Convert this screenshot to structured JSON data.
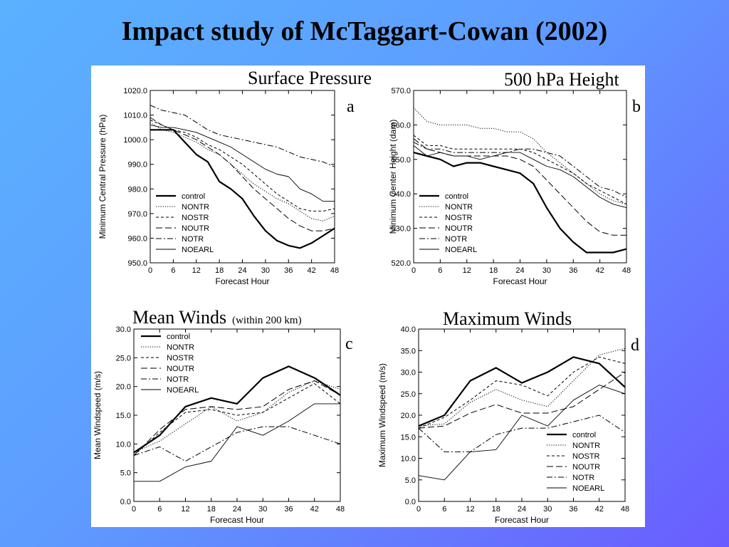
{
  "slide": {
    "title": "Impact study  of McTaggart-Cowan (2002)"
  },
  "chart_data": [
    {
      "type": "line",
      "panel": "a",
      "title": "Surface Pressure",
      "title_note": "",
      "xlabel": "Forecast Hour",
      "ylabel": "Minimum Central Pressure (hPa)",
      "xlim": [
        0,
        48
      ],
      "ylim": [
        950,
        1020
      ],
      "xticks": [
        0,
        6,
        12,
        18,
        24,
        30,
        36,
        42,
        48
      ],
      "yticks": [
        950,
        960,
        970,
        980,
        990,
        1000,
        1010,
        1020
      ],
      "ytick_decimals": 1,
      "legend_position": "bottom-left",
      "grid": false,
      "x": [
        0,
        3,
        6,
        9,
        12,
        15,
        18,
        21,
        24,
        27,
        30,
        33,
        36,
        39,
        42,
        45,
        48
      ],
      "series": [
        {
          "name": "control",
          "style": "solid-bold",
          "values": [
            1004,
            1004,
            1004,
            999,
            994,
            991,
            983,
            980,
            976,
            969,
            963,
            959,
            957,
            956,
            958,
            961,
            964
          ]
        },
        {
          "name": "NONTR",
          "style": "dotted",
          "values": [
            1007,
            1004,
            1003,
            1001,
            999,
            996,
            994,
            990,
            986,
            982,
            979,
            976,
            974,
            971,
            968,
            967,
            969
          ]
        },
        {
          "name": "NOSTR",
          "style": "short-dash",
          "values": [
            1008,
            1006,
            1004,
            1003,
            1001,
            998,
            996,
            993,
            990,
            986,
            982,
            978,
            975,
            972,
            971,
            971,
            972
          ]
        },
        {
          "name": "NOUTR",
          "style": "long-dash",
          "values": [
            1009,
            1006,
            1004,
            1002,
            1000,
            997,
            994,
            990,
            985,
            980,
            976,
            972,
            968,
            965,
            963,
            963,
            964
          ]
        },
        {
          "name": "NOTR",
          "style": "dash-dot",
          "values": [
            1014,
            1012,
            1011,
            1010,
            1007,
            1004,
            1002,
            1001,
            1000,
            999,
            998,
            997,
            995,
            993,
            992,
            991,
            989
          ]
        },
        {
          "name": "NOEARL",
          "style": "solid-thin",
          "values": [
            1006,
            1005,
            1005,
            1004,
            1003,
            1001,
            999,
            997,
            994,
            991,
            988,
            986,
            985,
            980,
            978,
            975,
            975
          ]
        }
      ]
    },
    {
      "type": "line",
      "panel": "b",
      "title": "500 hPa Height",
      "title_note": "",
      "xlabel": "Forecast Hour",
      "ylabel": "Minimum Center Height (dam)",
      "xlim": [
        0,
        48
      ],
      "ylim": [
        520,
        570
      ],
      "xticks": [
        0,
        6,
        12,
        18,
        24,
        30,
        36,
        42,
        48
      ],
      "yticks": [
        520,
        530,
        540,
        550,
        560,
        570
      ],
      "ytick_decimals": 1,
      "legend_position": "bottom-left",
      "grid": false,
      "x": [
        0,
        3,
        6,
        9,
        12,
        15,
        18,
        21,
        24,
        27,
        30,
        33,
        36,
        39,
        42,
        45,
        48
      ],
      "series": [
        {
          "name": "control",
          "style": "solid-bold",
          "values": [
            552,
            551,
            550,
            548,
            549,
            549,
            548,
            547,
            546,
            543,
            536,
            530,
            526,
            523,
            523,
            523,
            524
          ]
        },
        {
          "name": "NONTR",
          "style": "dotted",
          "values": [
            565,
            561,
            560,
            560,
            560,
            559,
            559,
            558,
            558,
            556,
            552,
            549,
            546,
            543,
            540,
            538,
            537
          ]
        },
        {
          "name": "NOSTR",
          "style": "short-dash",
          "values": [
            557,
            554,
            554,
            553,
            553,
            553,
            553,
            553,
            553,
            552,
            550,
            548,
            546,
            543,
            541,
            539,
            537
          ]
        },
        {
          "name": "NOUTR",
          "style": "long-dash",
          "values": [
            556,
            553,
            552,
            551,
            551,
            551,
            551,
            551,
            550,
            548,
            544,
            540,
            536,
            532,
            529,
            528,
            528
          ]
        },
        {
          "name": "NOTR",
          "style": "dash-dot",
          "values": [
            555,
            553,
            553,
            552,
            552,
            552,
            552,
            552,
            553,
            553,
            552,
            551,
            548,
            545,
            542,
            541,
            539
          ]
        },
        {
          "name": "NOEARL",
          "style": "solid-thin",
          "values": [
            554,
            551,
            552,
            551,
            551,
            550,
            551,
            552,
            552,
            550,
            548,
            547,
            545,
            542,
            539,
            537,
            536
          ]
        }
      ]
    },
    {
      "type": "line",
      "panel": "c",
      "title": "Mean Winds",
      "title_note": "(within 200 km)",
      "xlabel": "Forecast Hour",
      "ylabel": "Mean Windspeed (m/s)",
      "xlim": [
        0,
        48
      ],
      "ylim": [
        0,
        30
      ],
      "xticks": [
        0,
        6,
        12,
        18,
        24,
        30,
        36,
        42,
        48
      ],
      "yticks": [
        0,
        5,
        10,
        15,
        20,
        25,
        30
      ],
      "ytick_decimals": 1,
      "legend_position": "top-left",
      "grid": false,
      "x": [
        0,
        6,
        12,
        18,
        24,
        30,
        36,
        42,
        48
      ],
      "series": [
        {
          "name": "control",
          "style": "solid-bold",
          "values": [
            8.5,
            11.5,
            16.5,
            18.0,
            17.0,
            21.5,
            23.5,
            21.5,
            18.5
          ]
        },
        {
          "name": "NONTR",
          "style": "dotted",
          "values": [
            8.5,
            10.5,
            13.5,
            16.5,
            14.0,
            15.5,
            19.0,
            21.0,
            19.5
          ]
        },
        {
          "name": "NOSTR",
          "style": "short-dash",
          "values": [
            8.0,
            12.0,
            15.5,
            16.0,
            15.0,
            15.5,
            18.0,
            20.5,
            17.0
          ]
        },
        {
          "name": "NOUTR",
          "style": "long-dash",
          "values": [
            8.0,
            12.5,
            16.0,
            16.5,
            16.0,
            16.5,
            19.5,
            21.0,
            18.5
          ]
        },
        {
          "name": "NOTR",
          "style": "dash-dot",
          "values": [
            8.0,
            9.5,
            7.0,
            9.5,
            12.0,
            13.0,
            13.0,
            11.5,
            10.0
          ]
        },
        {
          "name": "NOEARL",
          "style": "solid-thin",
          "values": [
            3.5,
            3.5,
            6.0,
            7.0,
            13.0,
            11.5,
            14.0,
            17.0,
            17.0
          ]
        }
      ]
    },
    {
      "type": "line",
      "panel": "d",
      "title": "Maximum Winds",
      "title_note": "",
      "xlabel": "Forecast Hour",
      "ylabel": "Maximum Windspeed (m/s)",
      "xlim": [
        0,
        48
      ],
      "ylim": [
        0,
        40
      ],
      "xticks": [
        0,
        6,
        12,
        18,
        24,
        30,
        36,
        42,
        48
      ],
      "yticks": [
        0,
        5,
        10,
        15,
        20,
        25,
        30,
        35,
        40
      ],
      "ytick_decimals": 1,
      "legend_position": "bottom-right",
      "grid": false,
      "x": [
        0,
        6,
        12,
        18,
        24,
        30,
        36,
        42,
        48
      ],
      "series": [
        {
          "name": "control",
          "style": "solid-bold",
          "values": [
            17.5,
            20.0,
            28.0,
            31.0,
            27.5,
            30.0,
            33.5,
            32.0,
            26.5
          ]
        },
        {
          "name": "NONTR",
          "style": "dotted",
          "values": [
            17.5,
            18.0,
            23.0,
            26.0,
            23.5,
            22.0,
            28.0,
            34.0,
            35.5
          ]
        },
        {
          "name": "NOSTR",
          "style": "short-dash",
          "values": [
            17.0,
            19.5,
            23.5,
            28.0,
            27.0,
            24.5,
            30.0,
            33.5,
            32.0
          ]
        },
        {
          "name": "NOUTR",
          "style": "long-dash",
          "values": [
            17.0,
            17.5,
            20.5,
            22.5,
            20.5,
            20.5,
            22.0,
            26.0,
            30.0
          ]
        },
        {
          "name": "NOTR",
          "style": "dash-dot",
          "values": [
            17.0,
            11.5,
            11.5,
            15.5,
            17.0,
            17.0,
            18.5,
            20.0,
            16.0
          ]
        },
        {
          "name": "NOEARL",
          "style": "solid-thin",
          "values": [
            6.0,
            5.0,
            11.5,
            12.0,
            20.0,
            17.5,
            23.5,
            27.0,
            25.0
          ]
        }
      ]
    }
  ]
}
